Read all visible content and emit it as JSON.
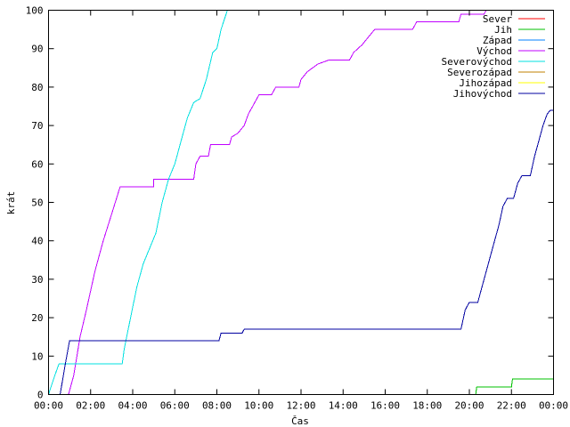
{
  "chart_data": {
    "type": "line",
    "title": "",
    "xlabel": "Čas",
    "ylabel": "krát",
    "xlim": [
      0,
      24
    ],
    "ylim": [
      0,
      100
    ],
    "x_unit": "hours",
    "xticks": [
      {
        "v": 0,
        "label": "00:00"
      },
      {
        "v": 2,
        "label": "02:00"
      },
      {
        "v": 4,
        "label": "04:00"
      },
      {
        "v": 6,
        "label": "06:00"
      },
      {
        "v": 8,
        "label": "08:00"
      },
      {
        "v": 10,
        "label": "10:00"
      },
      {
        "v": 12,
        "label": "12:00"
      },
      {
        "v": 14,
        "label": "14:00"
      },
      {
        "v": 16,
        "label": "16:00"
      },
      {
        "v": 18,
        "label": "18:00"
      },
      {
        "v": 20,
        "label": "20:00"
      },
      {
        "v": 22,
        "label": "22:00"
      },
      {
        "v": 24,
        "label": "00:00"
      }
    ],
    "yticks": [
      0,
      10,
      20,
      30,
      40,
      50,
      60,
      70,
      80,
      90,
      100
    ],
    "legend_position": "top-right",
    "grid": false,
    "series": [
      {
        "name": "Sever",
        "color": "#ff0000",
        "points": []
      },
      {
        "name": "Jih",
        "color": "#00c000",
        "points": [
          [
            0,
            0
          ],
          [
            20.3,
            0
          ],
          [
            20.35,
            2
          ],
          [
            22.0,
            2
          ],
          [
            22.05,
            4
          ],
          [
            24,
            4
          ]
        ]
      },
      {
        "name": "Západ",
        "color": "#0080ff",
        "points": []
      },
      {
        "name": "Východ",
        "color": "#c000ff",
        "points": [
          [
            0,
            0
          ],
          [
            0.95,
            0
          ],
          [
            1.2,
            5
          ],
          [
            1.5,
            15
          ],
          [
            1.8,
            22
          ],
          [
            2.2,
            32
          ],
          [
            2.6,
            40
          ],
          [
            3.0,
            47
          ],
          [
            3.4,
            54
          ],
          [
            5.0,
            54
          ],
          [
            5.0,
            56
          ],
          [
            6.9,
            56
          ],
          [
            7.0,
            60
          ],
          [
            7.2,
            62
          ],
          [
            7.6,
            62
          ],
          [
            7.7,
            65
          ],
          [
            8.6,
            65
          ],
          [
            8.7,
            67
          ],
          [
            9.0,
            68
          ],
          [
            9.3,
            70
          ],
          [
            9.5,
            73
          ],
          [
            9.7,
            75
          ],
          [
            10.0,
            78
          ],
          [
            10.6,
            78
          ],
          [
            10.8,
            80
          ],
          [
            11.9,
            80
          ],
          [
            12.0,
            82
          ],
          [
            12.3,
            84
          ],
          [
            12.8,
            86
          ],
          [
            13.3,
            87
          ],
          [
            14.3,
            87
          ],
          [
            14.5,
            89
          ],
          [
            14.9,
            91
          ],
          [
            15.2,
            93
          ],
          [
            15.5,
            95
          ],
          [
            17.3,
            95
          ],
          [
            17.5,
            97
          ],
          [
            19.5,
            97
          ],
          [
            19.6,
            99
          ],
          [
            20.7,
            99
          ],
          [
            20.8,
            100
          ]
        ]
      },
      {
        "name": "Severovýchod",
        "color": "#00e0e0",
        "points": [
          [
            0,
            0
          ],
          [
            0.3,
            5
          ],
          [
            0.5,
            8
          ],
          [
            3.5,
            8
          ],
          [
            3.6,
            12
          ],
          [
            3.9,
            20
          ],
          [
            4.2,
            28
          ],
          [
            4.5,
            34
          ],
          [
            4.8,
            38
          ],
          [
            5.1,
            42
          ],
          [
            5.4,
            50
          ],
          [
            5.7,
            56
          ],
          [
            6.0,
            60
          ],
          [
            6.3,
            66
          ],
          [
            6.6,
            72
          ],
          [
            6.9,
            76
          ],
          [
            7.2,
            77
          ],
          [
            7.5,
            82
          ],
          [
            7.8,
            89
          ],
          [
            8.0,
            90
          ],
          [
            8.2,
            95
          ],
          [
            8.5,
            100
          ]
        ]
      },
      {
        "name": "Severozápad",
        "color": "#c08000",
        "points": []
      },
      {
        "name": "Jihozápad",
        "color": "#ffff00",
        "points": []
      },
      {
        "name": "Jihovýchod",
        "color": "#0000a0",
        "points": [
          [
            0,
            0
          ],
          [
            0.55,
            0
          ],
          [
            0.8,
            8
          ],
          [
            1.0,
            14
          ],
          [
            8.1,
            14
          ],
          [
            8.2,
            16
          ],
          [
            9.2,
            16
          ],
          [
            9.3,
            17
          ],
          [
            19.6,
            17
          ],
          [
            19.8,
            22
          ],
          [
            20.0,
            24
          ],
          [
            20.4,
            24
          ],
          [
            20.6,
            28
          ],
          [
            20.8,
            32
          ],
          [
            21.0,
            36
          ],
          [
            21.2,
            40
          ],
          [
            21.4,
            44
          ],
          [
            21.6,
            49
          ],
          [
            21.8,
            51
          ],
          [
            22.1,
            51
          ],
          [
            22.3,
            55
          ],
          [
            22.5,
            57
          ],
          [
            22.9,
            57
          ],
          [
            23.1,
            62
          ],
          [
            23.3,
            66
          ],
          [
            23.5,
            70
          ],
          [
            23.7,
            73
          ],
          [
            23.85,
            74
          ],
          [
            24,
            74
          ]
        ]
      }
    ]
  }
}
